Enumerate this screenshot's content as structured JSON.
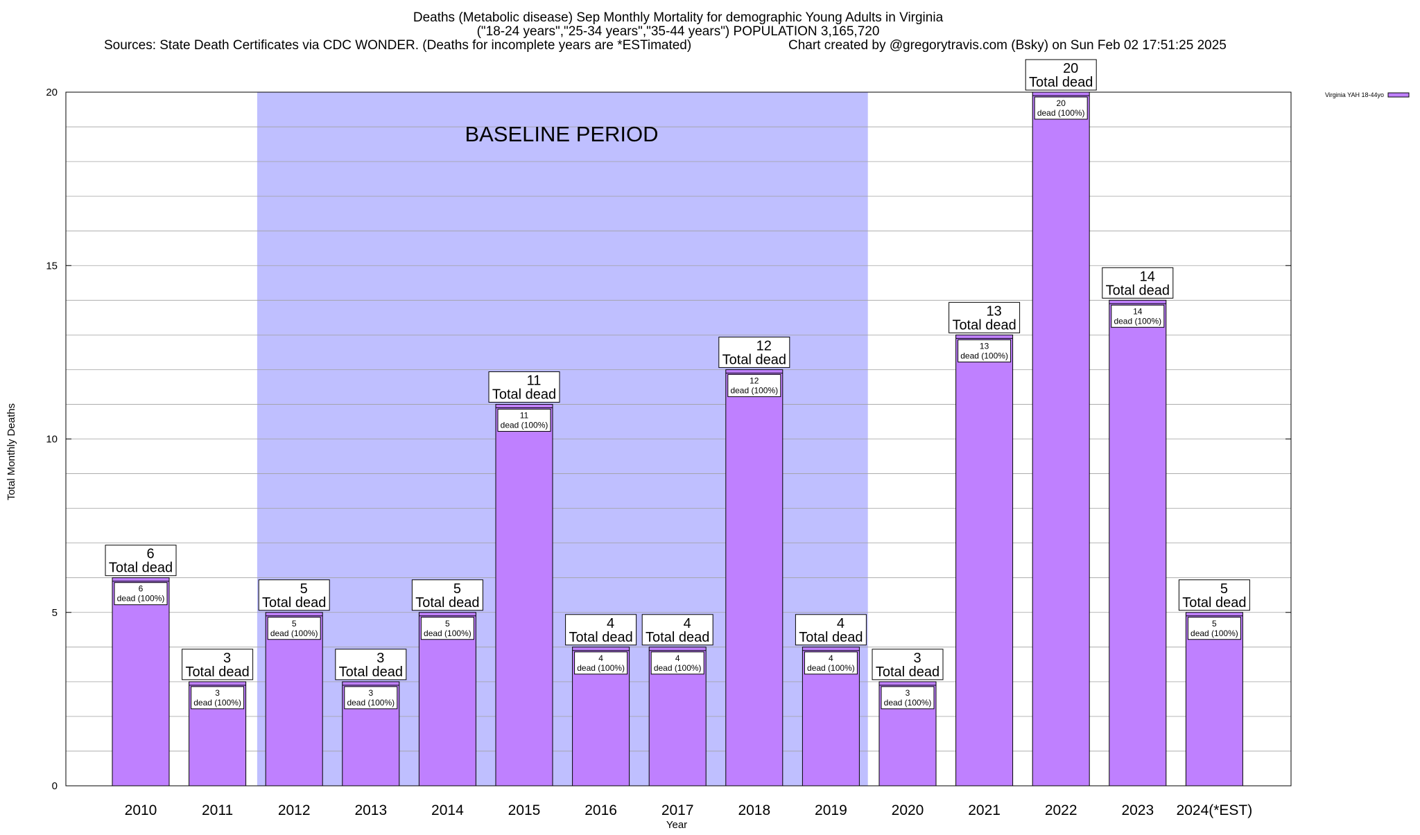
{
  "chart_data": {
    "type": "bar",
    "title_lines": [
      "Deaths (Metabolic disease) Sep Monthly Mortality for demographic Young Adults in Virginia",
      "(\"18-24 years\",\"25-34 years\",\"35-44 years\") POPULATION 3,165,720"
    ],
    "sources": "Sources: State Death Certificates via CDC WONDER. (Deaths for incomplete years are *ESTimated)",
    "credit": "Chart created by @gregorytravis.com (Bsky) on Sun Feb 02 17:51:25 2025",
    "xlabel": "Year",
    "ylabel": "Total Monthly Deaths",
    "ylim": [
      0,
      20
    ],
    "yticks": [
      "0",
      "5",
      "10",
      "15",
      "20"
    ],
    "minor_grid_step": 1,
    "grid": true,
    "categories": [
      "2010",
      "2011",
      "2012",
      "2013",
      "2014",
      "2015",
      "2016",
      "2017",
      "2018",
      "2019",
      "2020",
      "2021",
      "2022",
      "2023",
      "2024(*EST)"
    ],
    "series": [
      {
        "name": "Virginia YAH 18-44yo",
        "values": [
          6,
          3,
          5,
          3,
          5,
          11,
          4,
          4,
          12,
          4,
          3,
          13,
          20,
          14,
          5
        ],
        "color": "#bf80ff"
      }
    ],
    "total_label": "Total dead",
    "inner_label": "dead (100%)",
    "baseline": {
      "label": "BASELINE PERIOD",
      "from": "2012",
      "to": "2019",
      "color": "#bfbfff"
    },
    "legend_position": "top-right"
  }
}
